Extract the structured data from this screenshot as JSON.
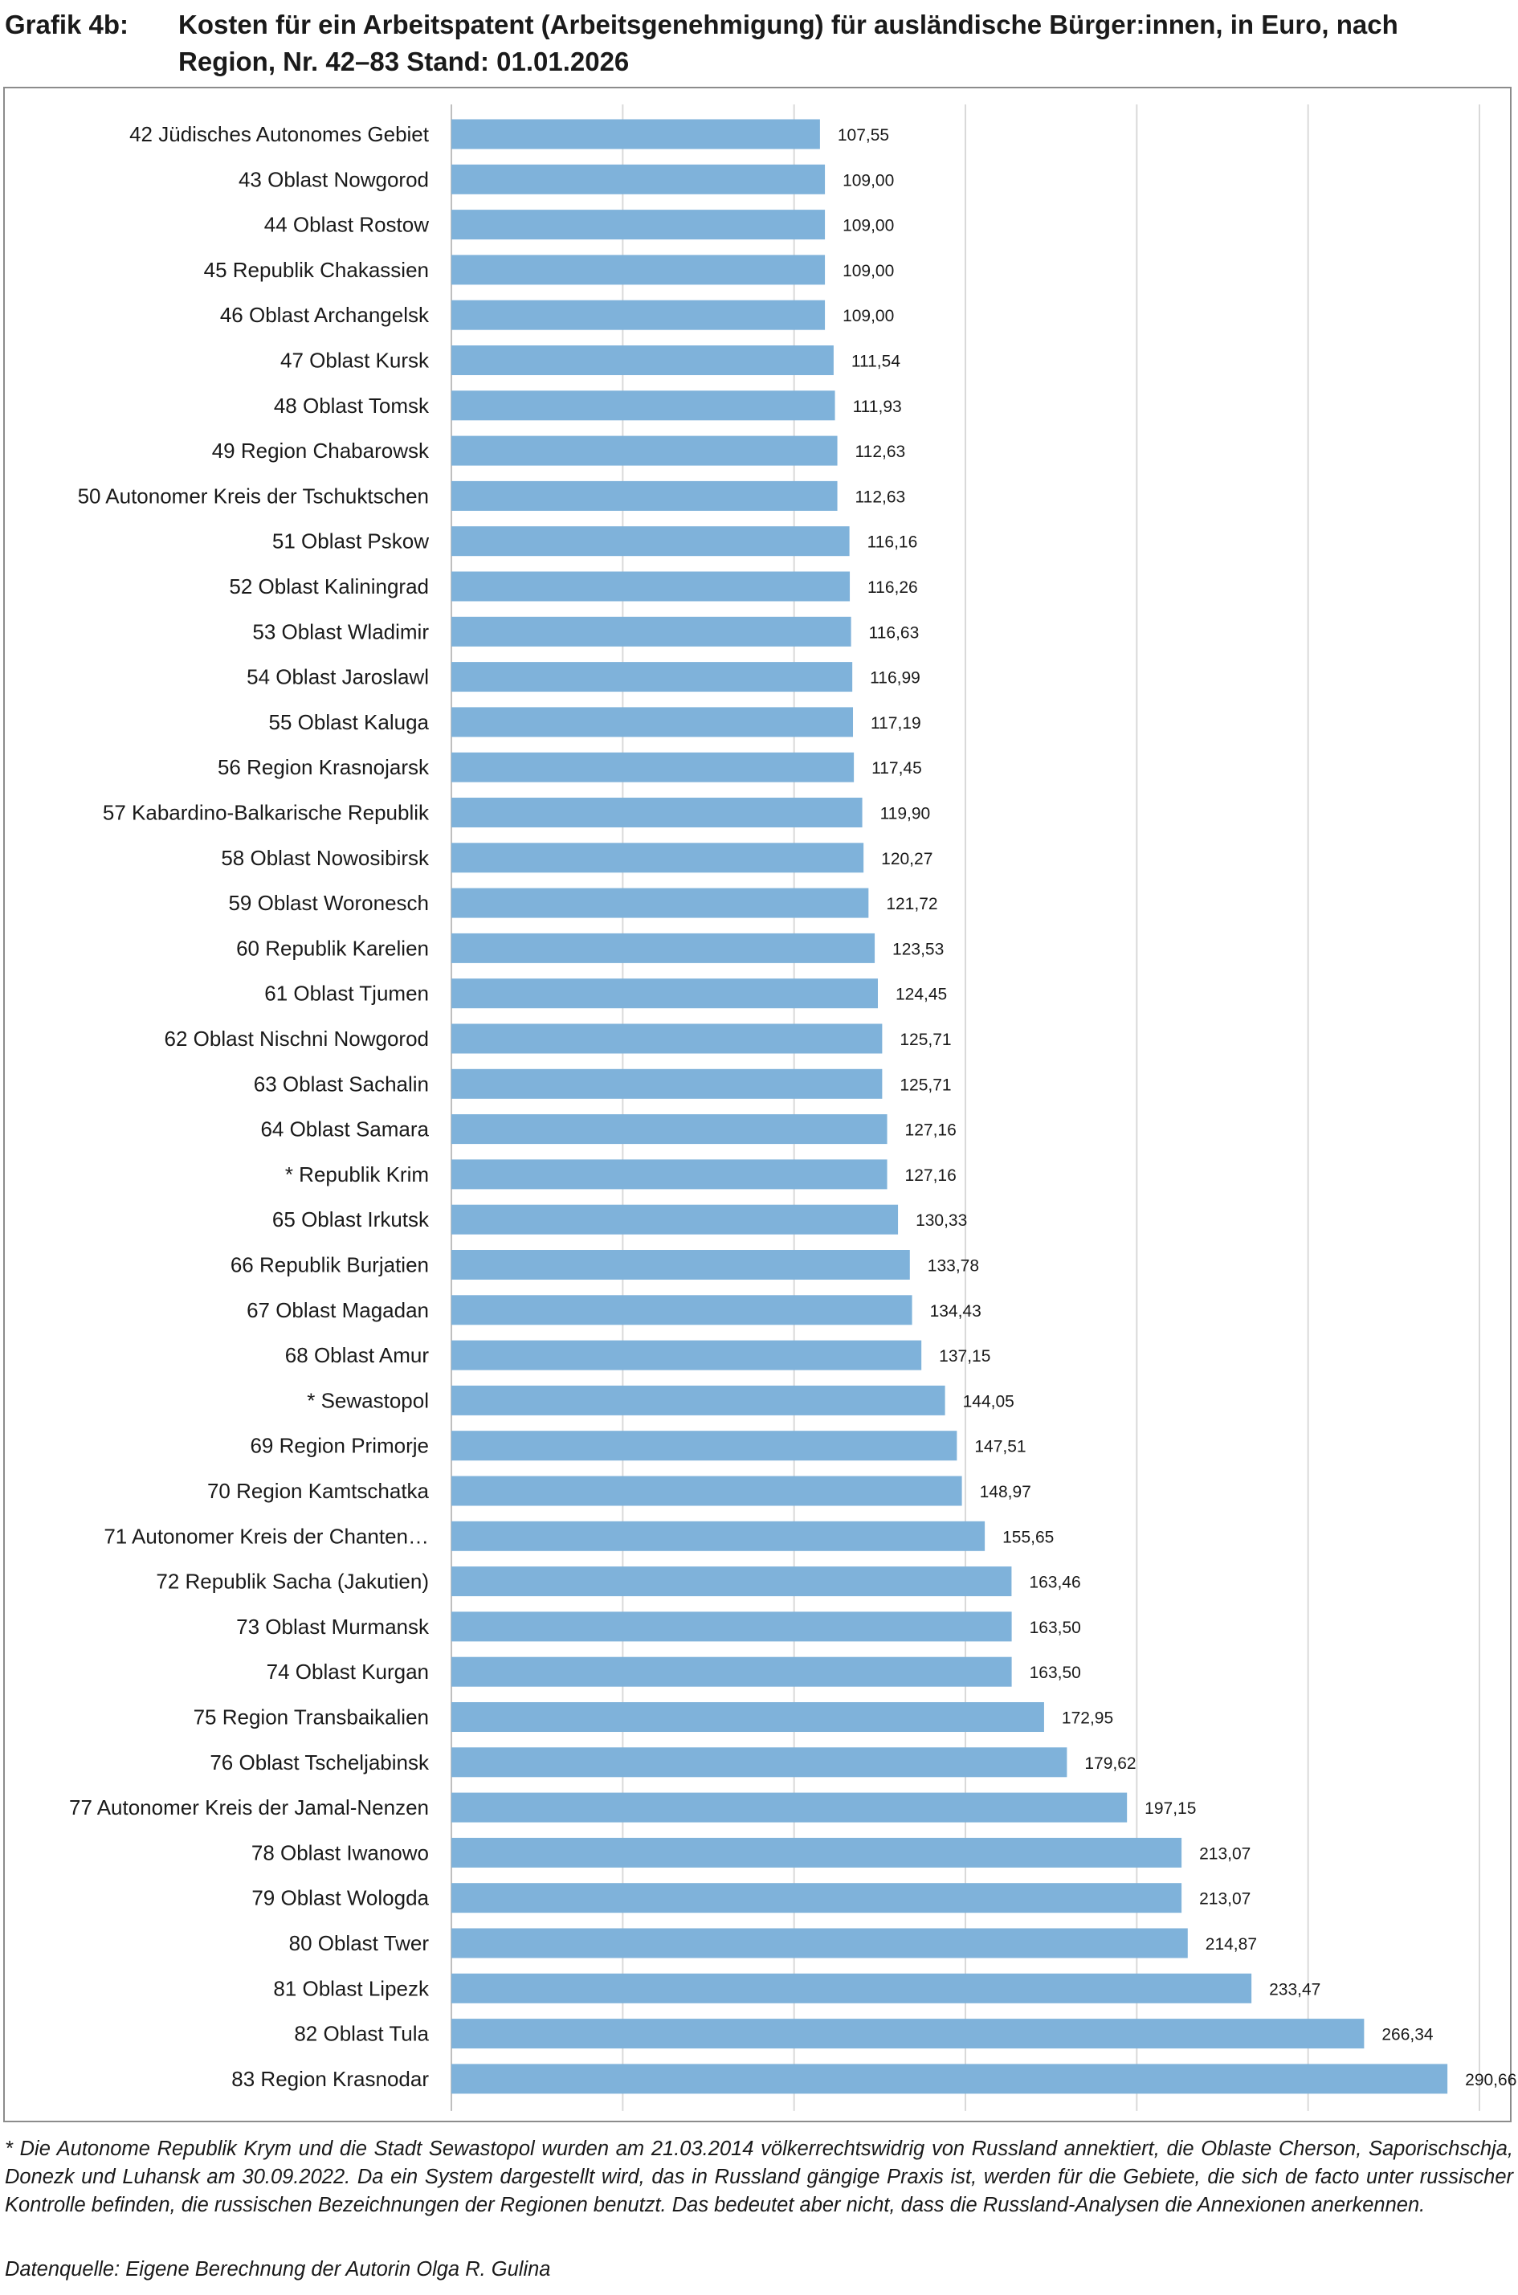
{
  "header": {
    "label": "Grafik 4b:",
    "title": "Kosten für ein Arbeitspatent (Arbeitsgenehmigung) für ausländische Bürger:innen, in Euro, nach Region, Nr. 42–83 Stand: 01.01.2026"
  },
  "colors": {
    "bar": "#7fb2da",
    "grid": "#d9d9d9",
    "axis": "#bfbfbf",
    "text": "#1a1a1a"
  },
  "chart_data": {
    "type": "bar",
    "orientation": "horizontal",
    "title": "",
    "xlabel": "",
    "ylabel": "",
    "xlim": [
      0,
      300
    ],
    "grid": true,
    "categories": [
      "42 Jüdisches Autonomes Gebiet",
      "43 Oblast Nowgorod",
      "44 Oblast Rostow",
      "45 Republik Chakassien",
      "46 Oblast Archangelsk",
      "47 Oblast Kursk",
      "48 Oblast Tomsk",
      "49 Region Chabarowsk",
      "50 Autonomer Kreis der Tschuktschen",
      "51 Oblast Pskow",
      "52 Oblast Kaliningrad",
      "53 Oblast Wladimir",
      "54 Oblast Jaroslawl",
      "55 Oblast Kaluga",
      "56 Region Krasnojarsk",
      "57 Kabardino-Balkarische Republik",
      "58 Oblast Nowosibirsk",
      "59 Oblast Woronesch",
      "60 Republik Karelien",
      "61 Oblast Tjumen",
      "62 Oblast Nischni Nowgorod",
      "63 Oblast Sachalin",
      "64 Oblast Samara",
      "* Republik Krim",
      "65 Oblast Irkutsk",
      "66 Republik Burjatien",
      "67 Oblast Magadan",
      "68 Oblast Amur",
      "* Sewastopol",
      "69 Region Primorje",
      "70 Region Kamtschatka",
      "71 Autonomer Kreis der Chanten…",
      "72 Republik Sacha (Jakutien)",
      "73 Oblast Murmansk",
      "74 Oblast Kurgan",
      "75 Region Transbaikalien",
      "76 Oblast Tscheljabinsk",
      "77 Autonomer Kreis der Jamal-Nenzen",
      "78 Oblast Iwanowo",
      "79 Oblast Wologda",
      "80 Oblast Twer",
      "81 Oblast Lipezk",
      "82 Oblast Tula",
      "83 Region Krasnodar"
    ],
    "values": [
      107.55,
      109.0,
      109.0,
      109.0,
      109.0,
      111.54,
      111.93,
      112.63,
      112.63,
      116.16,
      116.26,
      116.63,
      116.99,
      117.19,
      117.45,
      119.9,
      120.27,
      121.72,
      123.53,
      124.45,
      125.71,
      125.71,
      127.16,
      127.16,
      130.33,
      133.78,
      134.43,
      137.15,
      144.05,
      147.51,
      148.97,
      155.65,
      163.46,
      163.5,
      163.5,
      172.95,
      179.62,
      197.15,
      213.07,
      213.07,
      214.87,
      233.47,
      266.34,
      290.66
    ],
    "value_labels": [
      "107,55",
      "109,00",
      "109,00",
      "109,00",
      "109,00",
      "111,54",
      "111,93",
      "112,63",
      "112,63",
      "116,16",
      "116,26",
      "116,63",
      "116,99",
      "117,19",
      "117,45",
      "119,90",
      "120,27",
      "121,72",
      "123,53",
      "124,45",
      "125,71",
      "125,71",
      "127,16",
      "127,16",
      "130,33",
      "133,78",
      "134,43",
      "137,15",
      "144,05",
      "147,51",
      "148,97",
      "155,65",
      "163,46",
      "163,50",
      "163,50",
      "172,95",
      "179,62",
      "197,15",
      "213,07",
      "213,07",
      "214,87",
      "233,47",
      "266,34",
      "290,66"
    ]
  },
  "footnote": "* Die Autonome Republik Krym und die Stadt Sewastopol wurden am 21.03.2014 völkerrechtswidrig von Russland annektiert, die Oblaste Cherson, Saporischschja, Donezk und Luhansk am 30.09.2022. Da ein System dargestellt wird, das in Russland gängige Praxis ist, werden für die Gebiete, die sich de facto unter russischer Kontrolle befinden, die russischen Bezeichnungen der Regionen benutzt. Das bedeutet aber nicht, dass die Russland-Analysen die Annexionen anerkennen.",
  "source": "Datenquelle: Eigene Berechnung der Autorin Olga R. Gulina"
}
